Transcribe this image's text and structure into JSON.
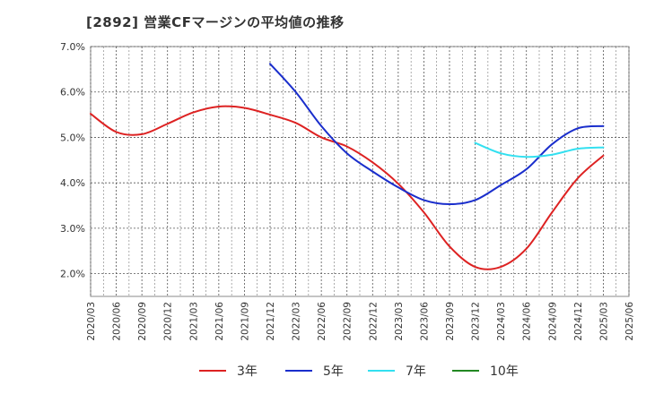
{
  "title": "[2892]  営業CFマージンの平均値の推移",
  "chart_data": {
    "type": "line",
    "title": "[2892]  営業CFマージンの平均値の推移",
    "xlabel": "",
    "ylabel": "",
    "x": [
      "2020/03",
      "2020/06",
      "2020/09",
      "2020/12",
      "2021/03",
      "2021/06",
      "2021/09",
      "2021/12",
      "2022/03",
      "2022/06",
      "2022/09",
      "2022/12",
      "2023/03",
      "2023/06",
      "2023/09",
      "2023/12",
      "2024/03",
      "2024/06",
      "2024/09",
      "2024/12",
      "2025/03",
      "2025/06"
    ],
    "y_ticks": [
      "2.0%",
      "3.0%",
      "4.0%",
      "5.0%",
      "6.0%",
      "7.0%"
    ],
    "ylim": [
      1.5,
      7.0
    ],
    "grid": true,
    "legend_position": "bottom",
    "series": [
      {
        "name": "3年",
        "color": "#dd2222",
        "values": [
          5.52,
          5.12,
          5.07,
          5.3,
          5.55,
          5.68,
          5.65,
          5.5,
          5.32,
          5.0,
          4.8,
          4.45,
          3.98,
          3.35,
          2.6,
          2.15,
          2.15,
          2.55,
          3.35,
          4.1,
          4.6,
          null
        ]
      },
      {
        "name": "5年",
        "color": "#1a2ecc",
        "values": [
          null,
          null,
          null,
          null,
          null,
          null,
          null,
          6.62,
          6.0,
          5.25,
          4.65,
          4.25,
          3.9,
          3.62,
          3.53,
          3.62,
          3.95,
          4.3,
          4.85,
          5.2,
          5.25,
          null
        ]
      },
      {
        "name": "7年",
        "color": "#33e0f0",
        "values": [
          null,
          null,
          null,
          null,
          null,
          null,
          null,
          null,
          null,
          null,
          null,
          null,
          null,
          null,
          null,
          4.88,
          4.65,
          4.57,
          4.62,
          4.75,
          4.78,
          null
        ]
      },
      {
        "name": "10年",
        "color": "#228822",
        "values": [
          null,
          null,
          null,
          null,
          null,
          null,
          null,
          null,
          null,
          null,
          null,
          null,
          null,
          null,
          null,
          null,
          null,
          null,
          null,
          null,
          null,
          null
        ]
      }
    ]
  }
}
